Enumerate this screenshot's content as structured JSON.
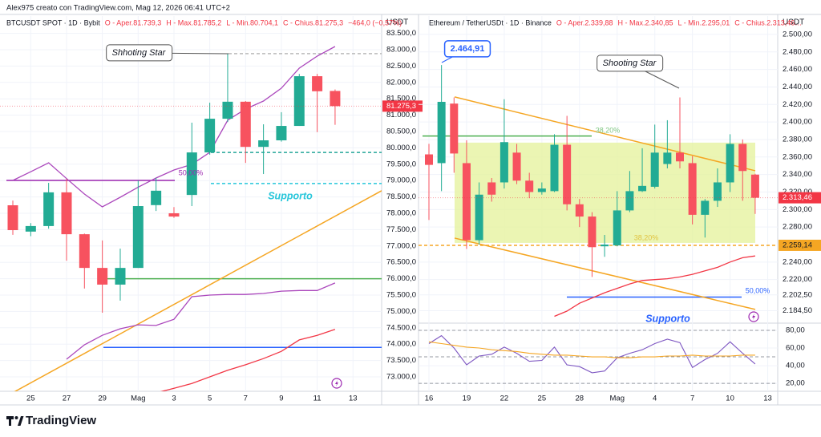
{
  "header": "Alex975 creato con TradingView.com, Mag 12, 2026 06:41 UTC+2",
  "footer": "TradingView",
  "chart_data": [
    {
      "type": "candlestick",
      "legend": [
        "BTCUSDT SPOT · 1D · Bybit",
        "O - Aper.81.739,3",
        "H - Max.81.785,2",
        "L - Min.80.704,1",
        "C - Chius.81.275,3",
        "−464,0 (−0,57%)"
      ],
      "unit": "USDT",
      "categories": [
        null,
        "25",
        null,
        "27",
        null,
        "29",
        null,
        "Mag",
        null,
        "3",
        null,
        "5",
        null,
        "7",
        null,
        "9",
        null,
        "11",
        null,
        "13"
      ],
      "open": [
        78245,
        77440,
        77610,
        78640,
        77360,
        76330,
        75820,
        76330,
        78250,
        78000,
        78560,
        79860,
        80890,
        81410,
        80030,
        80230,
        80670,
        82190,
        81739.3,
        null
      ],
      "high": [
        78390,
        77700,
        78930,
        79050,
        77380,
        77170,
        76920,
        79000,
        79080,
        78190,
        80770,
        81380,
        82880,
        81430,
        80720,
        81090,
        82260,
        82260,
        81785.2,
        null
      ],
      "low": [
        77340,
        77300,
        77530,
        76550,
        75700,
        74960,
        75330,
        76330,
        78070,
        77860,
        78220,
        79790,
        80790,
        79540,
        79200,
        80190,
        80670,
        80480,
        80704.1,
        null
      ],
      "close": [
        77485,
        77610,
        78640,
        77360,
        76330,
        75820,
        76330,
        78220,
        78690,
        77900,
        79860,
        80890,
        81410,
        80030,
        80230,
        80670,
        82190,
        81730,
        81275.3,
        null
      ],
      "up_color": "#22ab94",
      "down_color": "#f7525f",
      "lines": [
        {
          "color": "#ab47bc",
          "values": [
            79005,
            79270,
            79544,
            79060,
            78588,
            78196,
            78490,
            78800,
            79078,
            79324,
            79495,
            79863,
            80843,
            81186,
            81431,
            81824,
            82436,
            82804,
            83098,
            null
          ]
        },
        {
          "color": "#ab47bc",
          "values": [
            null,
            null,
            null,
            73540,
            73980,
            74270,
            74470,
            74590,
            74570,
            74760,
            75450,
            75500,
            75520,
            75520,
            75550,
            75620,
            75640,
            75640,
            75870,
            null
          ]
        },
        {
          "color": "#f23645",
          "values": [
            null,
            null,
            null,
            null,
            null,
            null,
            null,
            null,
            72510,
            72650,
            72800,
            73000,
            73200,
            73370,
            73560,
            73780,
            74130,
            74270,
            74450,
            null
          ]
        }
      ],
      "trendlines": [
        {
          "color": "#f5a623",
          "values": [
            72410,
            78690
          ]
        }
      ],
      "zones": [],
      "levels": [
        {
          "value": 76000,
          "color": "#4caf50",
          "dashed": false
        },
        {
          "value": 73900,
          "color": "#2962ff",
          "dashed": false
        },
        {
          "value": 79860,
          "color": "#26a69a",
          "dashed": true
        },
        {
          "value": 78910,
          "color": "#26c6da",
          "dashed": true
        },
        {
          "value": 82880,
          "color": "#b9b9b9",
          "dashed": true
        },
        {
          "value": 79005,
          "color": "#9c27b0",
          "dashed": false
        }
      ],
      "last_price": {
        "value": 81275.3,
        "label": "81.275,3",
        "color": "#f23645"
      },
      "annotations": [
        {
          "text": "Shhoting Star",
          "color": "#131722"
        },
        {
          "text": "Supporto",
          "color": "#26c6da"
        },
        {
          "text": "50,00%",
          "color": "#9c27b0"
        }
      ],
      "ylim": [
        72559,
        84029
      ],
      "yticks": [
        {
          "value": 83500,
          "label": "83.500,0"
        },
        {
          "value": 83000,
          "label": "83.000,0"
        },
        {
          "value": 82500,
          "label": "82.500,0"
        },
        {
          "value": 82000,
          "label": "82.000,0"
        },
        {
          "value": 81500,
          "label": "81.500,0"
        },
        {
          "value": 81000,
          "label": "81.000,0"
        },
        {
          "value": 80500,
          "label": "80.500,0"
        },
        {
          "value": 80000,
          "label": "80.000,0"
        },
        {
          "value": 79500,
          "label": "79.500,0"
        },
        {
          "value": 79000,
          "label": "79.000,0"
        },
        {
          "value": 78500,
          "label": "78.500,0"
        },
        {
          "value": 78000,
          "label": "78.000,0"
        },
        {
          "value": 77500,
          "label": "77.500,0"
        },
        {
          "value": 77000,
          "label": "77.000,0"
        },
        {
          "value": 76500,
          "label": "76.500,0"
        },
        {
          "value": 76000,
          "label": "76.000,0"
        },
        {
          "value": 75500,
          "label": "75.500,0"
        },
        {
          "value": 75000,
          "label": "75.000,0"
        },
        {
          "value": 74500,
          "label": "74.500,0"
        },
        {
          "value": 74000,
          "label": "74.000,0"
        },
        {
          "value": 73500,
          "label": "73.500,0"
        },
        {
          "value": 73000,
          "label": "73.000,0"
        }
      ]
    },
    {
      "type": "candlestick",
      "legend": [
        "Ethereum / TetherUSDt · 1D · Binance",
        "O - Aper.2.339,88",
        "H - Max.2.340,85",
        "L - Min.2.295,01",
        "C - Chius.2.313,46…"
      ],
      "unit": "USDT",
      "categories": [
        "16",
        null,
        null,
        "19",
        null,
        null,
        "22",
        null,
        null,
        "25",
        null,
        null,
        "28",
        null,
        null,
        "Mag",
        null,
        null,
        "4",
        null,
        null,
        "7",
        null,
        null,
        "10",
        null,
        null,
        "13"
      ],
      "open": [
        2363,
        2353,
        2421,
        2353,
        2265,
        2331,
        2331,
        2365,
        2333,
        2320,
        2321,
        2374,
        2306,
        2292,
        2258,
        2259,
        2299,
        2321,
        2326,
        2352,
        2365,
        2353,
        2294,
        2310,
        2331,
        2375,
        2339.88,
        null
      ],
      "high": [
        2375,
        2465,
        2428,
        2379,
        2331,
        2336,
        2426,
        2375,
        2342,
        2331,
        2386,
        2407,
        2312,
        2297,
        2271,
        2321,
        2344,
        2370,
        2397,
        2402,
        2428,
        2361,
        2312,
        2347,
        2386,
        2380,
        2340.85,
        null
      ],
      "low": [
        2288,
        2321,
        2342,
        2255,
        2260,
        2309,
        2324,
        2329,
        2313,
        2317,
        2320,
        2299,
        2280,
        2223,
        2246,
        2258,
        2297,
        2320,
        2324,
        2347,
        2347,
        2283,
        2268,
        2303,
        2320,
        2310,
        2295.01,
        null
      ],
      "close": [
        2351,
        2423,
        2364,
        2265,
        2317,
        2317,
        2377,
        2333,
        2320,
        2324,
        2374,
        2306,
        2292,
        2257,
        2260,
        2299,
        2321,
        2327,
        2365,
        2365,
        2355,
        2294,
        2310,
        2331,
        2375,
        2344,
        2313.46,
        null
      ],
      "up_color": "#22ab94",
      "down_color": "#f7525f",
      "lines": [
        {
          "color": "#f23645",
          "values": [
            null,
            null,
            null,
            null,
            null,
            null,
            null,
            null,
            null,
            null,
            2178,
            2184,
            2193,
            2199,
            2205,
            2210,
            2215,
            2219,
            2220,
            2221,
            2223,
            2226,
            2230,
            2234,
            2240,
            2245,
            2247,
            null
          ]
        }
      ],
      "trendlines": [
        {
          "color": "#f5a623",
          "values": [
            2428.6,
            2344.3
          ]
        },
        {
          "color": "#f5a623",
          "values": [
            2267.4,
            2185.9
          ]
        }
      ],
      "zones": [
        {
          "color": "#e6f3a0",
          "values": [
            2376.4,
            2261.9
          ]
        }
      ],
      "levels": [
        {
          "value": 2384,
          "color": "#4caf50",
          "dashed": false
        },
        {
          "value": 2259.14,
          "color": "#f5a623",
          "dashed": true,
          "label": "2.259,14"
        },
        {
          "value": 2200,
          "color": "#2962ff",
          "dashed": false
        }
      ],
      "last_price": {
        "value": 2313.46,
        "label": "2.313,46",
        "color": "#f23645"
      },
      "annotations": [
        {
          "text": "2.464,91",
          "color": "#2962ff"
        },
        {
          "text": "Shooting Star",
          "color": "#131722"
        },
        {
          "text": "38,20%",
          "color": "#81c784"
        },
        {
          "text": "38,20%",
          "color": "#e0c341"
        },
        {
          "text": "50,00%",
          "color": "#2962ff"
        },
        {
          "text": "Supporto",
          "color": "#2962ff"
        }
      ],
      "ylim": [
        2173,
        2521
      ],
      "yticks": [
        {
          "value": 2500,
          "label": "2.500,00"
        },
        {
          "value": 2480,
          "label": "2.480,00"
        },
        {
          "value": 2460,
          "label": "2.460,00"
        },
        {
          "value": 2440,
          "label": "2.440,00"
        },
        {
          "value": 2420,
          "label": "2.420,00"
        },
        {
          "value": 2400,
          "label": "2.400,00"
        },
        {
          "value": 2380,
          "label": "2.380,00"
        },
        {
          "value": 2360,
          "label": "2.360,00"
        },
        {
          "value": 2340,
          "label": "2.340,00"
        },
        {
          "value": 2320,
          "label": "2.320,00"
        },
        {
          "value": 2300,
          "label": "2.300,00"
        },
        {
          "value": 2280,
          "label": "2.280,00"
        },
        {
          "value": 2240,
          "label": "2.240,00"
        },
        {
          "value": 2220,
          "label": "2.220,00"
        },
        {
          "value": 2202.5,
          "label": "2.202,50"
        },
        {
          "value": 2184.5,
          "label": "2.184,50"
        }
      ],
      "indicator": {
        "type": "line",
        "series": [
          {
            "color": "#7e57c2",
            "values": [
              65,
              74,
              60,
              41,
              51,
              53,
              61,
              54,
              45,
              46,
              61,
              41,
              39,
              32,
              34,
              49,
              54,
              58,
              65,
              70,
              66,
              38,
              47,
              54,
              67,
              54,
              42,
              null
            ]
          },
          {
            "color": "#f5a623",
            "values": [
              67,
              65,
              63,
              61,
              60,
              58,
              57,
              56,
              54,
              53,
              52,
              52,
              51,
              50,
              50,
              49,
              49,
              50,
              50,
              51,
              51,
              52,
              51,
              51,
              51,
              52,
              52,
              null
            ]
          }
        ],
        "levels": [
          80,
          50,
          20
        ],
        "ylim": [
          11.1,
          87.2
        ],
        "yticks": [
          {
            "value": 80,
            "label": "80,00"
          },
          {
            "value": 60,
            "label": "60,00"
          },
          {
            "value": 40,
            "label": "40,00"
          },
          {
            "value": 20,
            "label": "20,00"
          }
        ]
      }
    }
  ]
}
